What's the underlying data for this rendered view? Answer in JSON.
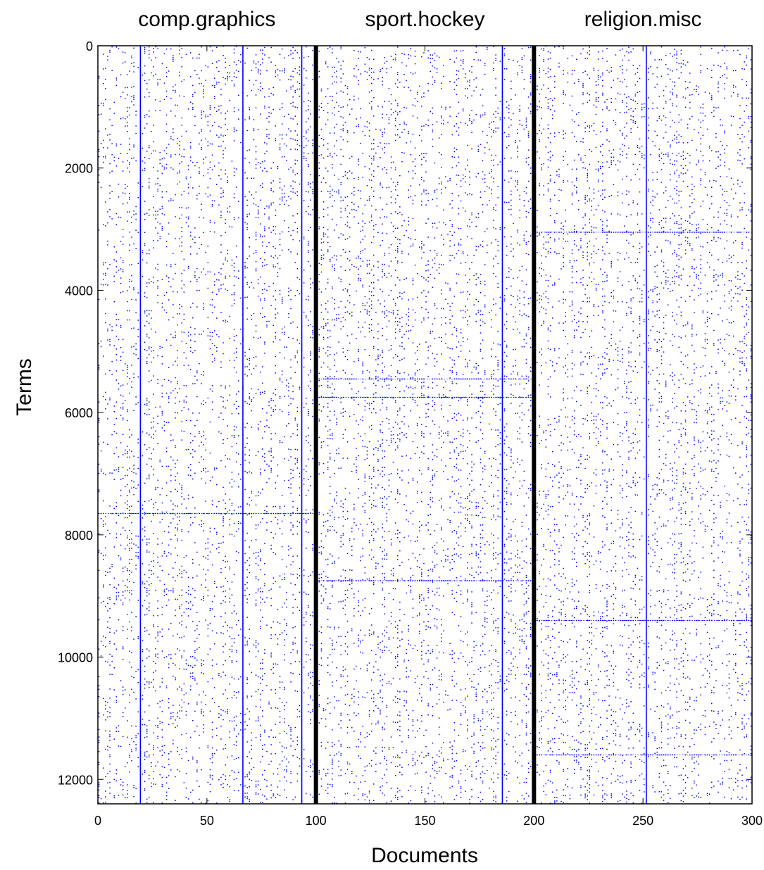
{
  "chart_data": {
    "type": "scatter",
    "subtype": "sparsity-pattern",
    "xlabel": "Documents",
    "ylabel": "Terms",
    "xlim": [
      0,
      300
    ],
    "ylim": [
      0,
      12400
    ],
    "y_inverted": true,
    "xticks": [
      0,
      50,
      100,
      150,
      200,
      250,
      300
    ],
    "yticks": [
      0,
      2000,
      4000,
      6000,
      8000,
      10000,
      12000
    ],
    "grid": false,
    "marker_color": "#0000ff",
    "separator_color": "#000000",
    "groups": [
      {
        "label": "comp.graphics",
        "start": 0,
        "end": 100
      },
      {
        "label": "sport.hockey",
        "start": 100,
        "end": 200
      },
      {
        "label": "religion.misc",
        "start": 200,
        "end": 300
      }
    ],
    "separators": [
      100,
      200
    ],
    "dense_columns": [
      19,
      66,
      93,
      185,
      251
    ],
    "dense_rows": [
      {
        "term": 3050,
        "group": 2
      },
      {
        "term": 5450,
        "group": 1
      },
      {
        "term": 5750,
        "group": 1
      },
      {
        "term": 7650,
        "group": 0
      },
      {
        "term": 8750,
        "group": 1
      },
      {
        "term": 9400,
        "group": 2
      },
      {
        "term": 11600,
        "group": 2
      }
    ]
  }
}
